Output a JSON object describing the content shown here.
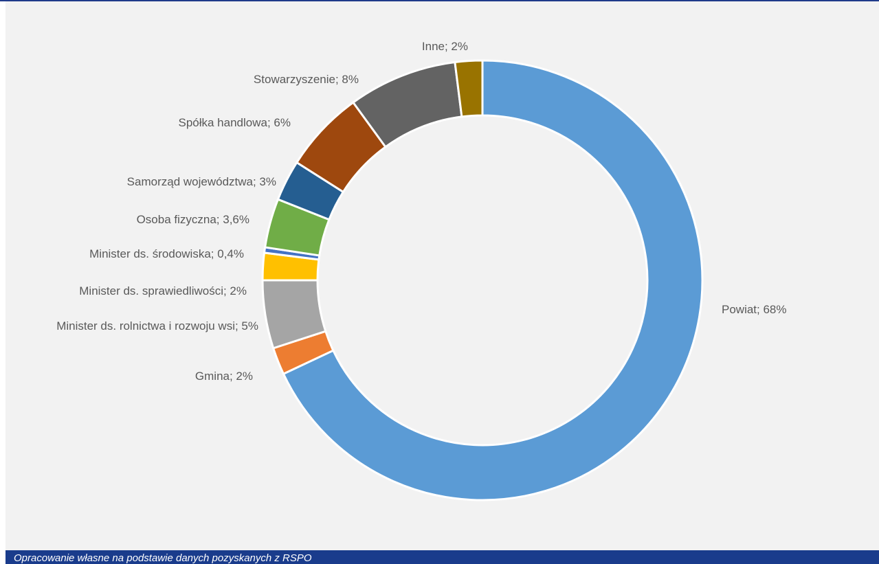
{
  "source": "Opracowanie własne na podstawie danych pozyskanych z RSPO",
  "chart_data": {
    "type": "pie",
    "variant": "donut",
    "title": "",
    "legend": "none",
    "slices": [
      {
        "name": "Powiat",
        "value": 68,
        "label": "Powiat; 68%",
        "color": "#5b9bd5"
      },
      {
        "name": "Gmina",
        "value": 2,
        "label": "Gmina; 2%",
        "color": "#ed7d31"
      },
      {
        "name": "Minister ds. rolnictwa i rozwoju wsi",
        "value": 5,
        "label": "Minister ds. rolnictwa i rozwoju wsi; 5%",
        "color": "#a5a5a5"
      },
      {
        "name": "Minister ds. sprawiedliwości",
        "value": 2,
        "label": "Minister ds. sprawiedliwości; 2%",
        "color": "#ffc000"
      },
      {
        "name": "Minister ds. środowiska",
        "value": 0.4,
        "label": "Minister ds. środowiska; 0,4%",
        "color": "#4472c4"
      },
      {
        "name": "Osoba fizyczna",
        "value": 3.6,
        "label": "Osoba fizyczna; 3,6%",
        "color": "#70ad47"
      },
      {
        "name": "Samorząd województwa",
        "value": 3,
        "label": "Samorząd województwa; 3%",
        "color": "#255e91"
      },
      {
        "name": "Spółka handlowa",
        "value": 6,
        "label": "Spółka handlowa; 6%",
        "color": "#9e480e"
      },
      {
        "name": "Stowarzyszenie",
        "value": 8,
        "label": "Stowarzyszenie; 8%",
        "color": "#636363"
      },
      {
        "name": "Inne",
        "value": 2,
        "label": "Inne; 2%",
        "color": "#997300"
      }
    ]
  }
}
